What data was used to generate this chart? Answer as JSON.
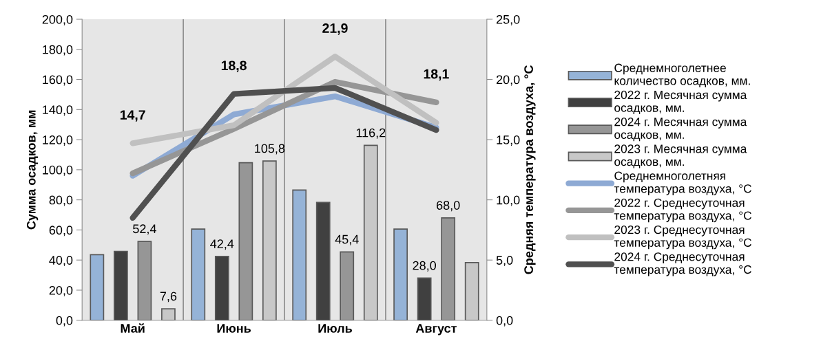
{
  "chart_data": {
    "type": "bar",
    "categories": [
      "Май",
      "Июнь",
      "Июль",
      "Август"
    ],
    "ylabel": "Сумма осадков, мм",
    "y2label": "Средняя температура воздуха, °C",
    "ylim": [
      0,
      200
    ],
    "yticks": [
      {
        "value": 0,
        "label": "0,0"
      },
      {
        "value": 20,
        "label": "20,0"
      },
      {
        "value": 40,
        "label": "40,0"
      },
      {
        "value": 60,
        "label": "60,0"
      },
      {
        "value": 80,
        "label": "80,0"
      },
      {
        "value": 100,
        "label": "100,0"
      },
      {
        "value": 120,
        "label": "120,0"
      },
      {
        "value": 140,
        "label": "140,0"
      },
      {
        "value": 160,
        "label": "160,0"
      },
      {
        "value": 180,
        "label": "180,0"
      },
      {
        "value": 200,
        "label": "200,0"
      }
    ],
    "y2lim": [
      0,
      25
    ],
    "y2ticks": [
      {
        "value": 0,
        "label": "0,0"
      },
      {
        "value": 5,
        "label": "5,0"
      },
      {
        "value": 10,
        "label": "10,0"
      },
      {
        "value": 15,
        "label": "15,0"
      },
      {
        "value": 20,
        "label": "20,0"
      },
      {
        "value": 25,
        "label": "25,0"
      }
    ],
    "grid": "x",
    "legend": "right",
    "series": [
      {
        "name": "Среднемноголетнее\nколичество осадков, мм.",
        "color": "#95b3d7",
        "values": [
          43.6,
          60.6,
          86.5,
          60.6
        ]
      },
      {
        "name": "2022 г. Месячная сумма\nосадков, мм.",
        "color": "#404040",
        "values": [
          45.8,
          42.4,
          78.3,
          28.0
        ],
        "value_labels": [
          null,
          "42,4",
          null,
          "28,0"
        ]
      },
      {
        "name": "2024 г. Месячная сумма\nосадков, мм.",
        "color": "#969696",
        "values": [
          52.4,
          104.7,
          45.4,
          68.0
        ],
        "value_labels": [
          "52,4",
          null,
          "45,4",
          "68,0"
        ]
      },
      {
        "name": "2023 г. Месячная сумма\nосадков, мм.",
        "color": "#c8c8c8",
        "values": [
          7.6,
          105.8,
          116.2,
          38.3
        ],
        "value_labels": [
          "7,6",
          "105,8",
          "116,2",
          null
        ]
      },
      {
        "name": "Среднемноголетняя\nтемпература воздуха, °C",
        "type": "line",
        "axis": "y2",
        "color": "#8eaad4",
        "values": [
          12.0,
          17.1,
          18.6,
          16.0
        ]
      },
      {
        "name": "2022 г. Среднесуточная\nтемпература воздуха, °C",
        "type": "line",
        "axis": "y2",
        "color": "#969696",
        "values": [
          12.2,
          15.9,
          19.8,
          18.1
        ],
        "value_labels": [
          null,
          null,
          null,
          "18,1"
        ]
      },
      {
        "name": "2023 г. Среднесуточная\nтемпература воздуха, °C",
        "type": "line",
        "axis": "y2",
        "color": "#c0c0c0",
        "values": [
          14.7,
          16.2,
          21.9,
          16.4
        ],
        "value_labels": [
          "14,7",
          null,
          "21,9",
          null
        ]
      },
      {
        "name": "2024 г. Среднесуточная\nтемпература воздуха, °C",
        "type": "line",
        "axis": "y2",
        "color": "#505050",
        "values": [
          8.5,
          18.8,
          19.3,
          15.8
        ],
        "value_labels": [
          null,
          "18,8",
          null,
          null
        ]
      }
    ]
  }
}
